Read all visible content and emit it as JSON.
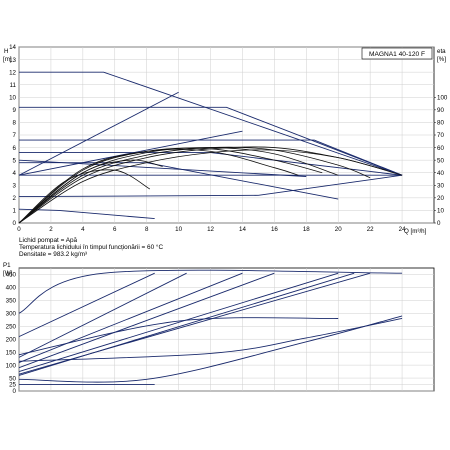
{
  "chart_data": [
    {
      "type": "line",
      "model_label": "MAGNA1 40-120 F",
      "x_unit": "Q [m³/h]",
      "y_left_unit_top": "H",
      "y_left_unit_bottom": "[m]",
      "y_right_unit": "eta",
      "y_right_unit_bottom": "[%]",
      "xlim": [
        0,
        26
      ],
      "ylim": [
        0,
        14
      ],
      "y2lim": [
        0,
        140
      ],
      "x_ticks": [
        "0",
        "2",
        "4",
        "6",
        "8",
        "10",
        "12",
        "14",
        "16",
        "18",
        "20",
        "22",
        "24"
      ],
      "y_ticks": [
        "0",
        "1",
        "2",
        "3",
        "4",
        "5",
        "6",
        "7",
        "8",
        "9",
        "10",
        "11",
        "12",
        "13",
        "14"
      ],
      "y2_ticks": [
        "0",
        "10",
        "20",
        "30",
        "40",
        "50",
        "60",
        "70",
        "80",
        "90",
        "100"
      ],
      "notes": [
        "Lichid pompat = Apă",
        "Temperatura lichidului în timpul funcționării = 60 °C",
        "Densitate = 983.2 kg/m³"
      ],
      "series": [
        {
          "kind": "qh",
          "values": [
            [
              0,
              12
            ],
            [
              5.3,
              12
            ],
            [
              24,
              3.8
            ]
          ]
        },
        {
          "kind": "qh",
          "values": [
            [
              0,
              9.2
            ],
            [
              13,
              9.2
            ],
            [
              24,
              3.8
            ]
          ]
        },
        {
          "kind": "qh",
          "values": [
            [
              0,
              6.6
            ],
            [
              18.5,
              6.6
            ],
            [
              24,
              3.8
            ]
          ]
        },
        {
          "kind": "qh",
          "values": [
            [
              0,
              5.6
            ],
            [
              12,
              5.6
            ],
            [
              24,
              3.8
            ]
          ]
        },
        {
          "kind": "qh",
          "values": [
            [
              0,
              4.8
            ],
            [
              8,
              4.8
            ],
            [
              20,
              1.9
            ]
          ]
        },
        {
          "kind": "qh",
          "values": [
            [
              0,
              3.8
            ],
            [
              19,
              3.8
            ],
            [
              24,
              3.8
            ]
          ]
        },
        {
          "kind": "qh",
          "values": [
            [
              0,
              2.1
            ],
            [
              15,
              2.2
            ],
            [
              24,
              3.8
            ]
          ]
        },
        {
          "kind": "qh",
          "values": [
            [
              0,
              1.1
            ],
            [
              2.5,
              1.0
            ],
            [
              8.5,
              0.35
            ]
          ]
        },
        {
          "kind": "qh",
          "values": [
            [
              0,
              3.8
            ],
            [
              10,
              10.4
            ]
          ]
        },
        {
          "kind": "qh",
          "values": [
            [
              0,
              3.8
            ],
            [
              14,
              7.3
            ]
          ]
        },
        {
          "kind": "qh",
          "values": [
            [
              0,
              5.0
            ],
            [
              18,
              3.7
            ]
          ]
        },
        {
          "kind": "eta",
          "values": [
            [
              0,
              0
            ],
            [
              4,
              33
            ],
            [
              8,
              48
            ],
            [
              12,
              56
            ],
            [
              16,
              58
            ],
            [
              20,
              52
            ],
            [
              24,
              38
            ]
          ]
        },
        {
          "kind": "eta",
          "values": [
            [
              0,
              0
            ],
            [
              4,
              36
            ],
            [
              8,
              52
            ],
            [
              12,
              59
            ],
            [
              16,
              60
            ],
            [
              20,
              52
            ],
            [
              23,
              42
            ]
          ]
        },
        {
          "kind": "eta",
          "values": [
            [
              0,
              0
            ],
            [
              4,
              38
            ],
            [
              8,
              54
            ],
            [
              12,
              60
            ],
            [
              16,
              58
            ],
            [
              20,
              46
            ],
            [
              22,
              36
            ]
          ]
        },
        {
          "kind": "eta",
          "values": [
            [
              0,
              0
            ],
            [
              4,
              40
            ],
            [
              8,
              56
            ],
            [
              12,
              60
            ],
            [
              16,
              55
            ],
            [
              20,
              38
            ]
          ]
        },
        {
          "kind": "eta",
          "values": [
            [
              0,
              0
            ],
            [
              4,
              42
            ],
            [
              8,
              57
            ],
            [
              12,
              59
            ],
            [
              16,
              50
            ],
            [
              19,
              40
            ]
          ]
        },
        {
          "kind": "eta",
          "values": [
            [
              0,
              0
            ],
            [
              4,
              43
            ],
            [
              8,
              57
            ],
            [
              12,
              57
            ],
            [
              16,
              44
            ],
            [
              17.5,
              38
            ]
          ]
        },
        {
          "kind": "eta",
          "values": [
            [
              0,
              0
            ],
            [
              4,
              40
            ],
            [
              7,
              50
            ],
            [
              9,
              45
            ]
          ]
        },
        {
          "kind": "eta",
          "values": [
            [
              0,
              0
            ],
            [
              3,
              34
            ],
            [
              6,
              42
            ],
            [
              8.2,
              27
            ]
          ]
        }
      ]
    },
    {
      "type": "line",
      "y_unit_top": "P1",
      "y_unit_bottom": "[W]",
      "xlim": [
        0,
        26
      ],
      "ylim": [
        0,
        475
      ],
      "y_ticks": [
        "0",
        "25",
        "50",
        "100",
        "150",
        "200",
        "250",
        "300",
        "350",
        "400",
        "450"
      ],
      "series": [
        {
          "values": [
            [
              0,
              300
            ],
            [
              5.3,
              455
            ],
            [
              24,
              455
            ]
          ]
        },
        {
          "values": [
            [
              0,
              210
            ],
            [
              8.5,
              455
            ]
          ]
        },
        {
          "values": [
            [
              0,
              130
            ],
            [
              10.5,
              455
            ]
          ]
        },
        {
          "values": [
            [
              0,
              110
            ],
            [
              14,
              455
            ]
          ]
        },
        {
          "values": [
            [
              0,
              90
            ],
            [
              16,
              455
            ]
          ]
        },
        {
          "values": [
            [
              0,
              75
            ],
            [
              20,
              455
            ]
          ]
        },
        {
          "values": [
            [
              0,
              65
            ],
            [
              22,
              455
            ]
          ]
        },
        {
          "values": [
            [
              0,
              60
            ],
            [
              21,
              455
            ]
          ]
        },
        {
          "values": [
            [
              0,
              140
            ],
            [
              10,
              270
            ],
            [
              20,
              280
            ]
          ]
        },
        {
          "values": [
            [
              0,
              45
            ],
            [
              8,
              45
            ],
            [
              18,
              190
            ],
            [
              24,
              290
            ]
          ]
        },
        {
          "values": [
            [
              0,
              25
            ],
            [
              8.5,
              25
            ]
          ]
        },
        {
          "values": [
            [
              0,
              115
            ],
            [
              12,
              145
            ],
            [
              18,
              205
            ],
            [
              24,
              280
            ]
          ]
        }
      ]
    }
  ]
}
